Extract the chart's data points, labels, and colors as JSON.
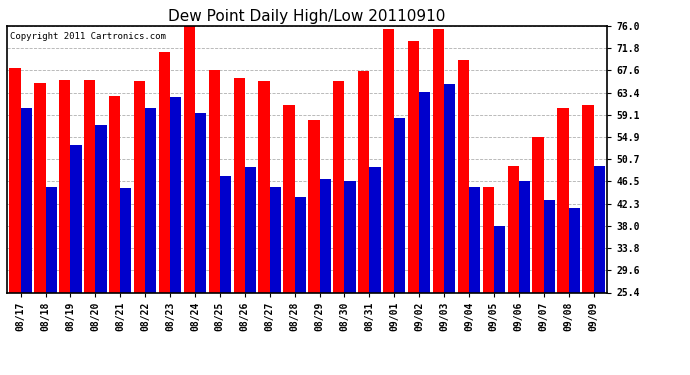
{
  "title": "Dew Point Daily High/Low 20110910",
  "copyright": "Copyright 2011 Cartronics.com",
  "dates": [
    "08/17",
    "08/18",
    "08/19",
    "08/20",
    "08/21",
    "08/22",
    "08/23",
    "08/24",
    "08/25",
    "08/26",
    "08/27",
    "08/28",
    "08/29",
    "08/30",
    "08/31",
    "09/01",
    "09/02",
    "09/03",
    "09/04",
    "09/05",
    "09/06",
    "09/07",
    "09/08",
    "09/09"
  ],
  "highs": [
    68.0,
    65.2,
    65.8,
    65.8,
    62.8,
    65.5,
    71.2,
    76.5,
    67.6,
    66.2,
    65.5,
    61.0,
    58.2,
    65.5,
    67.5,
    75.5,
    73.2,
    75.5,
    69.5,
    45.5,
    49.5,
    55.0,
    60.5,
    61.0
  ],
  "lows": [
    60.5,
    45.5,
    53.5,
    57.2,
    45.3,
    60.5,
    62.5,
    59.5,
    47.5,
    49.2,
    45.5,
    43.5,
    47.0,
    46.5,
    49.2,
    58.5,
    63.5,
    65.0,
    45.5,
    38.0,
    46.5,
    43.0,
    41.5,
    49.5
  ],
  "high_color": "#ff0000",
  "low_color": "#0000cc",
  "bg_color": "#ffffff",
  "plot_bg": "#ffffff",
  "yticks": [
    25.4,
    29.6,
    33.8,
    38.0,
    42.3,
    46.5,
    50.7,
    54.9,
    59.1,
    63.4,
    67.6,
    71.8,
    76.0
  ],
  "ymin": 25.4,
  "ymax": 76.0,
  "grid_color": "#b0b0b0",
  "title_fontsize": 11,
  "tick_fontsize": 7,
  "copyright_fontsize": 6.5
}
